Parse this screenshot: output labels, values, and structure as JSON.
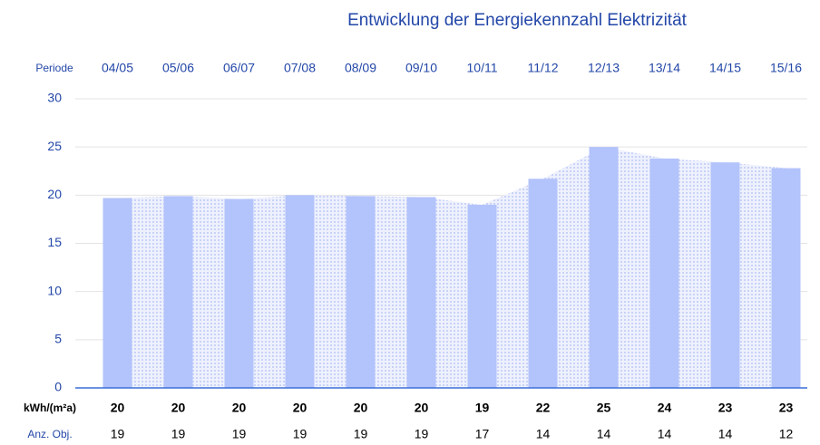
{
  "chart_data": {
    "type": "bar",
    "title": "Entwicklung der Energiekennzahl Elektrizität",
    "category_label": "Periode",
    "categories": [
      "04/05",
      "05/06",
      "06/07",
      "07/08",
      "08/09",
      "09/10",
      "10/11",
      "11/12",
      "12/13",
      "13/14",
      "14/15",
      "15/16"
    ],
    "value_name": "kWh/(m²a)",
    "values": [
      19.7,
      19.9,
      19.6,
      20.0,
      19.9,
      19.8,
      19.0,
      21.7,
      25.0,
      23.8,
      23.4,
      22.8
    ],
    "value_labels": [
      "20",
      "20",
      "20",
      "20",
      "20",
      "20",
      "19",
      "22",
      "25",
      "24",
      "23",
      "23"
    ],
    "color": "#b3c3fb",
    "area": true,
    "objects": {
      "name": "Anz. Obj.",
      "values": [
        19,
        19,
        19,
        19,
        19,
        19,
        17,
        14,
        14,
        14,
        14,
        12
      ]
    },
    "ylim": [
      0,
      30
    ],
    "yticks": [
      0,
      5,
      10,
      15,
      20,
      25,
      30
    ],
    "grid": true
  }
}
